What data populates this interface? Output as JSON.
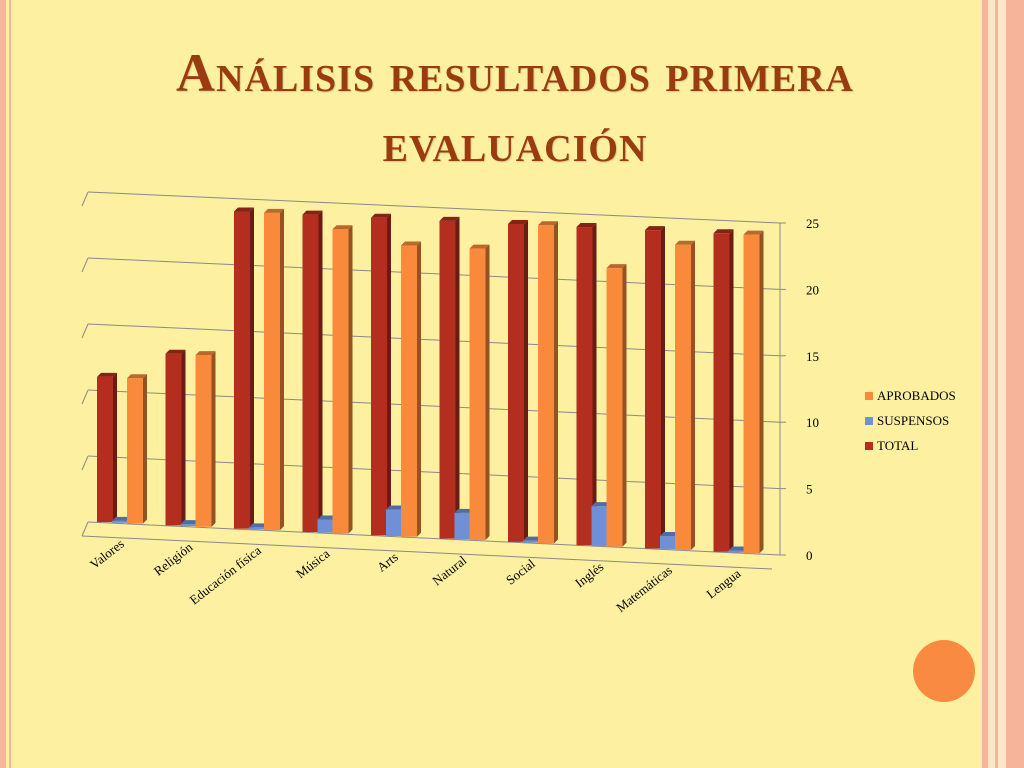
{
  "slide": {
    "title": "Análisis resultados primera evaluación"
  },
  "colors": {
    "background": "#fdf0a0",
    "title": "#9a3b10",
    "accent_circle": "#f98a42",
    "aprobados": "#f98a3c",
    "suspensos": "#6f8fd6",
    "total": "#b32e1e"
  },
  "chart_data": {
    "type": "bar",
    "title": "",
    "xlabel": "",
    "ylabel": "",
    "ylim": [
      0,
      25
    ],
    "yticks": [
      0,
      5,
      10,
      15,
      20,
      25
    ],
    "categories": [
      "Valores",
      "Religión",
      "Educación física",
      "Música",
      "Arts",
      "Natural",
      "Social",
      "Inglés",
      "Matemáticas",
      "Lengua"
    ],
    "series": [
      {
        "name": "TOTAL",
        "values": [
          11,
          13,
          24,
          24,
          24,
          24,
          24,
          24,
          24,
          24
        ]
      },
      {
        "name": "SUSPENSOS",
        "values": [
          0,
          0,
          0,
          1,
          2,
          2,
          0,
          3,
          1,
          0
        ]
      },
      {
        "name": "APROBADOS",
        "values": [
          11,
          13,
          24,
          23,
          22,
          22,
          24,
          21,
          23,
          24
        ]
      }
    ],
    "legend": {
      "position": "right",
      "entries": [
        "APROBADOS",
        "SUSPENSOS",
        "TOTAL"
      ]
    },
    "grid": true
  }
}
